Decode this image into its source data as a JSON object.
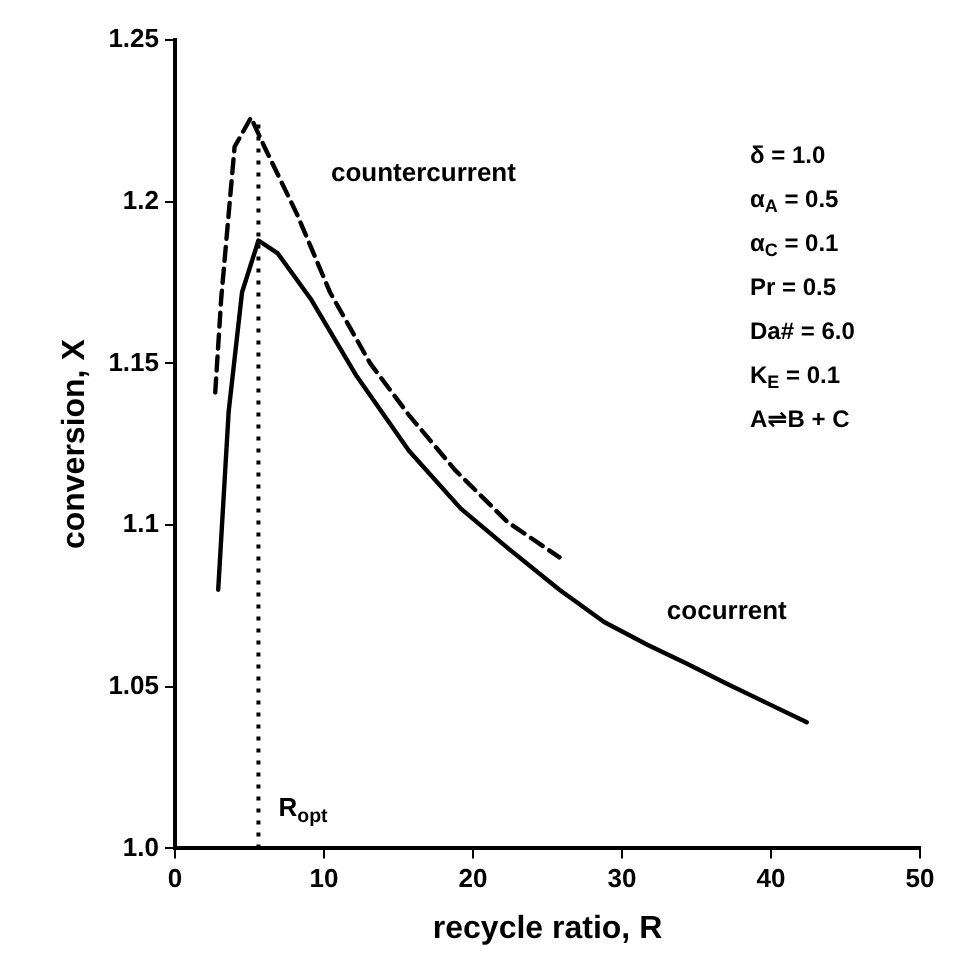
{
  "chart_data": {
    "type": "line",
    "xlabel": "recycle ratio, R",
    "ylabel": "conversion, X",
    "xlim": [
      0,
      50
    ],
    "xticks": [
      0,
      10,
      20,
      30,
      40,
      50
    ],
    "ylim": [
      1.0,
      1.25
    ],
    "yticks": [
      {
        "value": 1.0,
        "label": "1.0"
      },
      1.05,
      1.1,
      1.15,
      1.2,
      1.25
    ],
    "legend": false,
    "marker": "none",
    "series": [
      {
        "name": "countercurrent",
        "color": "#000000",
        "line_style": "dashed",
        "x": [
          2.7,
          3.1,
          4.0,
          5.1,
          6.0,
          8.2,
          10.4,
          13.1,
          15.7,
          18.8,
          22.3,
          25.8
        ],
        "values": [
          1.141,
          1.17,
          1.217,
          1.226,
          1.217,
          1.196,
          1.172,
          1.15,
          1.134,
          1.117,
          1.101,
          1.09
        ]
      },
      {
        "name": "cocurrent",
        "color": "#000000",
        "line_style": "solid",
        "x": [
          2.9,
          3.6,
          4.5,
          5.6,
          6.9,
          9.1,
          12.2,
          15.7,
          19.2,
          22.3,
          25.8,
          28.8,
          31.7,
          34.4,
          37,
          39.7,
          42.4
        ],
        "values": [
          1.08,
          1.135,
          1.172,
          1.188,
          1.184,
          1.17,
          1.146,
          1.123,
          1.105,
          1.093,
          1.08,
          1.07,
          1.063,
          1.057,
          1.051,
          1.045,
          1.039
        ]
      }
    ],
    "ref_lines": [
      {
        "axis": "x",
        "value": 5.6,
        "label": "R$_{opt}$",
        "line_style": "dotted",
        "color": "#000000"
      }
    ],
    "annotations": [
      "δ = 1.0",
      "α$_{A}$ = 0.5",
      "α$_{C}$ = 0.1",
      "Pr = 0.5",
      "Da# = 6.0",
      "K$_{E}$ = 0.1",
      "A⇌B + C"
    ]
  }
}
